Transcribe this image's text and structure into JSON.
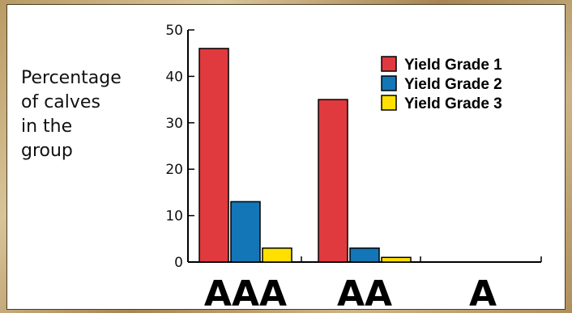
{
  "chart_data": {
    "type": "bar",
    "ylabel_lines": [
      "Percentage",
      "of calves",
      "in the",
      "group"
    ],
    "categories": [
      "AAA",
      "AA",
      "A"
    ],
    "series": [
      {
        "name": "Yield Grade 1",
        "color": "#e03a3e",
        "values": [
          46,
          35,
          0
        ]
      },
      {
        "name": "Yield Grade 2",
        "color": "#1376b6",
        "values": [
          13,
          3,
          0
        ]
      },
      {
        "name": "Yield Grade 3",
        "color": "#ffe000",
        "values": [
          3,
          1,
          0
        ]
      }
    ],
    "ylim": [
      0,
      50
    ],
    "yticks": [
      0,
      10,
      20,
      30,
      40,
      50
    ],
    "legend_position": "top-right",
    "grid": false
  }
}
